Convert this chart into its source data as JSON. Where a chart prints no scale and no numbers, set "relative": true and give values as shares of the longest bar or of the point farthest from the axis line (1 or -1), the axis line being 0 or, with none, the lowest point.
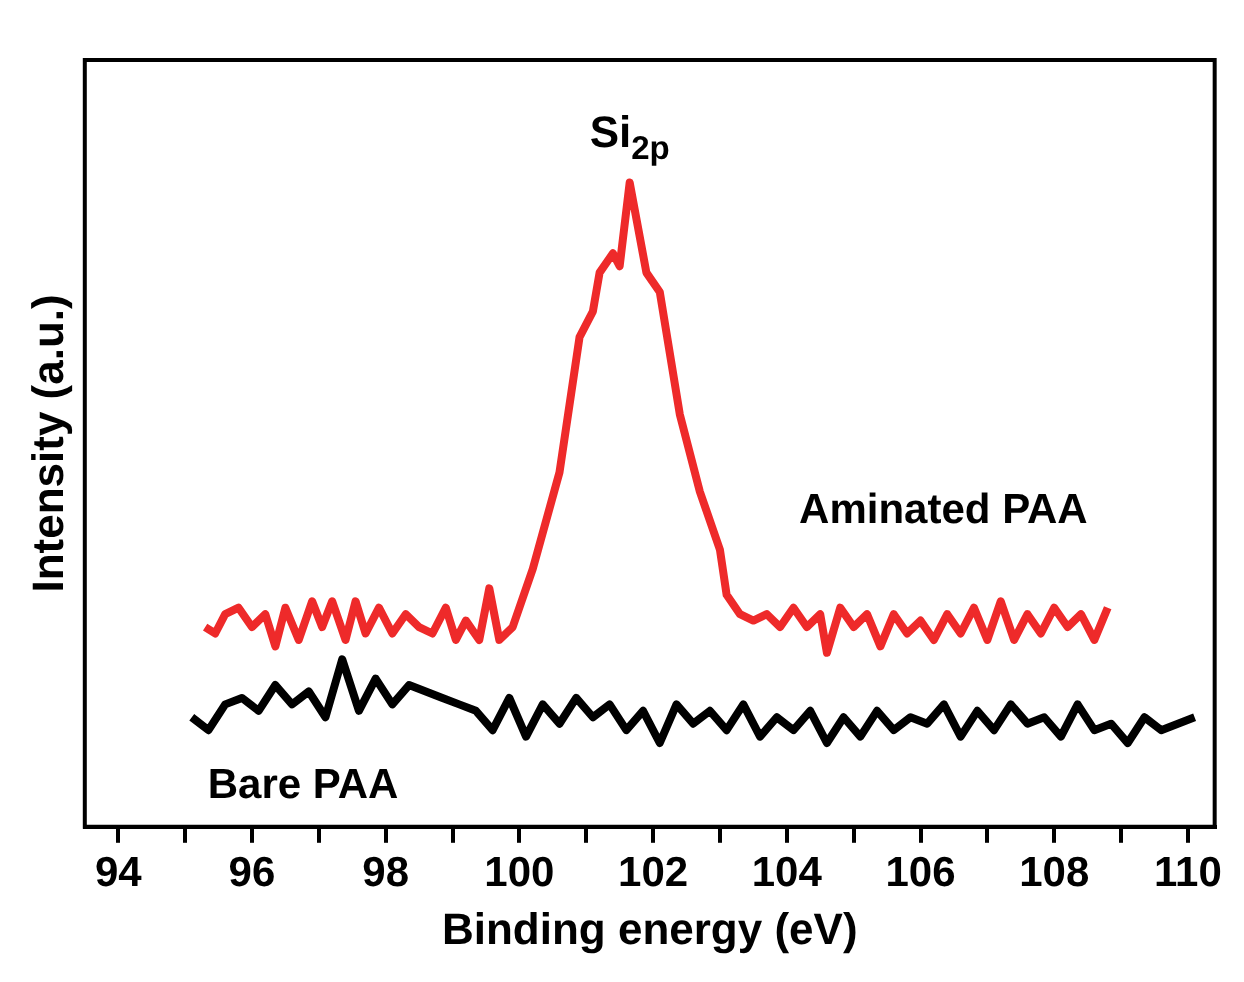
{
  "chart_data": {
    "type": "line",
    "relative": true,
    "xlabel": "Binding energy (eV)",
    "ylabel": "Intensity (a.u.)",
    "annotations": [
      "Si$_{2p}$"
    ],
    "xlim": [
      93.5,
      110.4
    ],
    "xticks": [
      94,
      {
        "value": 95,
        "label": null
      },
      96,
      {
        "value": 97,
        "label": null
      },
      98,
      {
        "value": 99,
        "label": null
      },
      100,
      {
        "value": 101,
        "label": null
      },
      102,
      {
        "value": 103,
        "label": null
      },
      104,
      {
        "value": 105,
        "label": null
      },
      106,
      {
        "value": 107,
        "label": null
      },
      108,
      {
        "value": 109,
        "label": null
      },
      110
    ],
    "grid": false,
    "legend": false,
    "marker": "none",
    "line_style": "solid",
    "series": [
      {
        "name": "Aminated PAA",
        "color": "#ee2a2a",
        "x": [
          95.3,
          95.45,
          95.6,
          95.8,
          96.0,
          96.2,
          96.35,
          96.5,
          96.7,
          96.9,
          97.05,
          97.2,
          97.4,
          97.55,
          97.7,
          97.9,
          98.1,
          98.3,
          98.5,
          98.7,
          98.9,
          99.05,
          99.2,
          99.4,
          99.55,
          99.7,
          99.9,
          100.2,
          100.6,
          100.7,
          100.9,
          101.1,
          101.2,
          101.4,
          101.5,
          101.65,
          101.9,
          102.1,
          102.4,
          102.7,
          103.0,
          103.1,
          103.3,
          103.5,
          103.7,
          103.9,
          104.1,
          104.3,
          104.5,
          104.6,
          104.8,
          105.0,
          105.2,
          105.4,
          105.6,
          105.8,
          106.0,
          106.2,
          106.4,
          106.6,
          106.8,
          107.0,
          107.2,
          107.4,
          107.6,
          107.8,
          108.0,
          108.2,
          108.4,
          108.6,
          108.8
        ],
        "values": [
          0.31,
          0.3,
          0.33,
          0.34,
          0.31,
          0.33,
          0.28,
          0.34,
          0.29,
          0.35,
          0.31,
          0.35,
          0.29,
          0.35,
          0.3,
          0.34,
          0.3,
          0.33,
          0.31,
          0.3,
          0.34,
          0.29,
          0.32,
          0.29,
          0.37,
          0.29,
          0.31,
          0.4,
          0.55,
          0.62,
          0.76,
          0.8,
          0.86,
          0.89,
          0.87,
          1.0,
          0.86,
          0.83,
          0.64,
          0.52,
          0.43,
          0.36,
          0.33,
          0.32,
          0.33,
          0.31,
          0.34,
          0.31,
          0.33,
          0.27,
          0.34,
          0.31,
          0.33,
          0.28,
          0.33,
          0.3,
          0.32,
          0.29,
          0.33,
          0.3,
          0.34,
          0.29,
          0.35,
          0.29,
          0.33,
          0.3,
          0.34,
          0.31,
          0.33,
          0.29,
          0.34
        ]
      },
      {
        "name": "Bare PAA",
        "color": "#000000",
        "x": [
          95.1,
          95.35,
          95.6,
          95.85,
          96.1,
          96.35,
          96.6,
          96.85,
          97.1,
          97.35,
          97.6,
          97.85,
          98.1,
          98.35,
          98.6,
          98.85,
          99.1,
          99.35,
          99.6,
          99.85,
          100.1,
          100.35,
          100.6,
          100.85,
          101.1,
          101.35,
          101.6,
          101.85,
          102.1,
          102.35,
          102.6,
          102.85,
          103.1,
          103.35,
          103.6,
          103.85,
          104.1,
          104.35,
          104.6,
          104.85,
          105.1,
          105.35,
          105.6,
          105.85,
          106.1,
          106.35,
          106.6,
          106.85,
          107.1,
          107.35,
          107.6,
          107.85,
          108.1,
          108.35,
          108.6,
          108.85,
          109.1,
          109.35,
          109.6,
          109.85,
          110.1
        ],
        "values": [
          0.17,
          0.15,
          0.19,
          0.2,
          0.18,
          0.22,
          0.19,
          0.21,
          0.17,
          0.26,
          0.18,
          0.23,
          0.19,
          0.22,
          0.21,
          0.2,
          0.19,
          0.18,
          0.15,
          0.2,
          0.14,
          0.19,
          0.16,
          0.2,
          0.17,
          0.19,
          0.15,
          0.18,
          0.13,
          0.19,
          0.16,
          0.18,
          0.15,
          0.19,
          0.14,
          0.17,
          0.15,
          0.18,
          0.13,
          0.17,
          0.14,
          0.18,
          0.15,
          0.17,
          0.16,
          0.19,
          0.14,
          0.18,
          0.15,
          0.19,
          0.16,
          0.17,
          0.14,
          0.19,
          0.15,
          0.16,
          0.13,
          0.17,
          0.15,
          0.16,
          0.17
        ]
      }
    ]
  }
}
